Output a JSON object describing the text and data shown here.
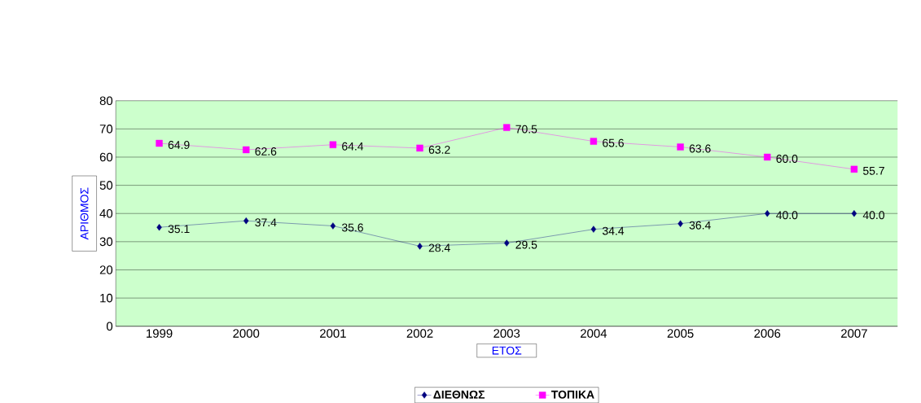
{
  "chart_data": {
    "type": "line",
    "xlabel": "ΕΤΟΣ",
    "ylabel": "ΑΡΙΘΜΟΣ",
    "categories": [
      "1999",
      "2000",
      "2001",
      "2002",
      "2003",
      "2004",
      "2005",
      "2006",
      "2007"
    ],
    "series": [
      {
        "name": "ΔΙΕΘΝΩΣ",
        "color": "#000080",
        "marker": "diamond",
        "values": [
          35.1,
          37.4,
          35.6,
          28.4,
          29.5,
          34.4,
          36.4,
          40.0,
          40.0
        ],
        "value_labels": [
          "35.1",
          "37.4",
          "35.6",
          "28.4",
          "29.5",
          "34.4",
          "36.4",
          "40.0",
          "40.0"
        ]
      },
      {
        "name": "ΤΟΠΙΚΑ",
        "color": "#ff00ff",
        "marker": "square",
        "values": [
          64.9,
          62.6,
          64.4,
          63.2,
          70.5,
          65.6,
          63.6,
          60.0,
          55.7
        ],
        "value_labels": [
          "64.9",
          "62.6",
          "64.4",
          "63.2",
          "70.5",
          "65.6",
          "63.6",
          "60.0",
          "55.7"
        ]
      }
    ],
    "ylim": [
      0,
      80
    ],
    "yticks": [
      0,
      10,
      20,
      30,
      40,
      50,
      60,
      70,
      80
    ],
    "grid": "y",
    "legend": "bottom"
  }
}
